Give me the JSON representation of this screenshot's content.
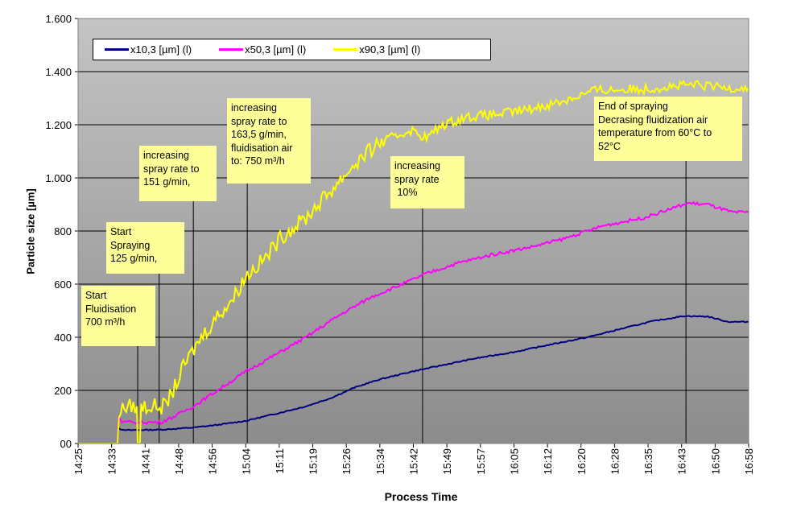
{
  "chart_data": {
    "type": "line",
    "title": "",
    "xlabel": "Process Time",
    "ylabel": "Particle size [µm]",
    "ylim": [
      0,
      1600
    ],
    "yticks": [
      0,
      200,
      400,
      600,
      800,
      1000,
      1200,
      1400,
      1600
    ],
    "ytick_labels": [
      "00",
      "200",
      "400",
      "600",
      "800",
      "1.000",
      "1.200",
      "1.400",
      "1.600"
    ],
    "x_unit": "minutes since 14:25",
    "xlim": [
      0,
      153
    ],
    "xtick_labels": [
      "14:25",
      "14:33",
      "14:41",
      "14:48",
      "14:56",
      "15:04",
      "15:11",
      "15:19",
      "15:26",
      "15:34",
      "15:42",
      "15:49",
      "15:57",
      "16:05",
      "16:12",
      "16:20",
      "16:28",
      "16:35",
      "16:43",
      "16:50",
      "16:58"
    ],
    "grid": true,
    "legend_position": "top-left",
    "series": [
      {
        "name": "x10,3 [µm] (l)",
        "color": "#000080",
        "x": [
          0,
          9.0,
          9.2,
          10,
          18.9,
          26.3,
          31.8,
          38.2,
          44.6,
          52,
          57.5,
          63,
          68.5,
          75.9,
          83.2,
          90.5,
          99.7,
          107,
          116.2,
          123.5,
          130.9,
          138.2,
          143.7,
          148.3,
          153
        ],
        "y": [
          0,
          0,
          60,
          50,
          52,
          60,
          70,
          85,
          110,
          140,
          170,
          210,
          240,
          270,
          295,
          320,
          345,
          370,
          400,
          430,
          460,
          480,
          478,
          458,
          458
        ]
      },
      {
        "name": "x50,3 [µm] (l)",
        "color": "#ff00ff",
        "x": [
          0,
          9.0,
          9.2,
          10,
          18.9,
          21.7,
          26.3,
          31.8,
          38.2,
          44.6,
          52,
          59.3,
          66.7,
          74,
          79.5,
          86.8,
          94.2,
          103.4,
          110.7,
          119.9,
          129.1,
          134.6,
          139.2,
          143.7,
          149.2,
          153
        ],
        "y": [
          0,
          0,
          100,
          80,
          80,
          100,
          140,
          200,
          270,
          330,
          400,
          480,
          550,
          600,
          640,
          680,
          710,
          740,
          770,
          820,
          850,
          880,
          905,
          900,
          870,
          870
        ]
      },
      {
        "name": "x90,3 [µm] (l)",
        "color": "#ffff00",
        "x": [
          0,
          9.0,
          9.3,
          11.4,
          13.4,
          13.6,
          14.1,
          14.4,
          19.8,
          21.7,
          24.4,
          28.1,
          31.8,
          35.5,
          38.2,
          42.8,
          46.5,
          52,
          57.5,
          63,
          68.5,
          75.9,
          79.5,
          83.2,
          88.7,
          96,
          103.4,
          110.7,
          118,
          129.1,
          140.1,
          147.4,
          153
        ],
        "y": [
          0,
          0,
          120,
          140,
          140,
          0,
          0,
          140,
          140,
          200,
          300,
          400,
          480,
          550,
          630,
          700,
          780,
          850,
          950,
          1050,
          1130,
          1180,
          1150,
          1200,
          1230,
          1240,
          1260,
          1290,
          1330,
          1335,
          1350,
          1340,
          1340
        ]
      }
    ],
    "annotations": [
      {
        "x": 13.6,
        "lines": [
          "Start",
          "Fluidisation",
          "700 m³/h"
        ]
      },
      {
        "x": 18.5,
        "lines": [
          "Start",
          "Spraying",
          "125 g/min,"
        ]
      },
      {
        "x": 26.3,
        "lines": [
          "increasing",
          "spray rate to",
          "151 g/min,"
        ]
      },
      {
        "x": 38.6,
        "lines": [
          "increasing",
          "spray rate to",
          "163,5 g/min,",
          "fluidisation  air",
          "to: 750 m³/h"
        ]
      },
      {
        "x": 78.6,
        "lines": [
          "increasing",
          "spray rate",
          " 10%"
        ]
      },
      {
        "x": 138.7,
        "lines": [
          "End of spraying",
          "Decrasing  fluidization air",
          "temperature  from 60°C to",
          "52°C"
        ]
      }
    ]
  }
}
